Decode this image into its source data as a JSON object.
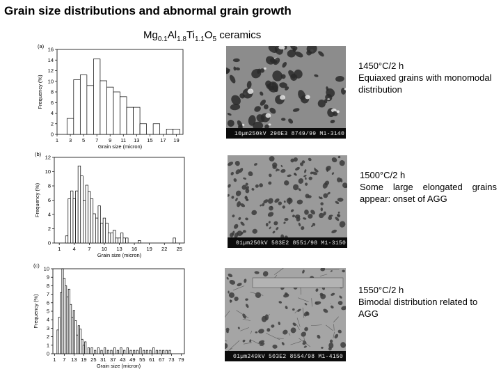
{
  "page": {
    "title": "Grain size distributions and abnormal grain growth",
    "subtitle": {
      "parts": [
        {
          "t": "Mg",
          "sub": false
        },
        {
          "t": "0.1",
          "sub": true
        },
        {
          "t": "Al",
          "sub": false
        },
        {
          "t": "1.8",
          "sub": true
        },
        {
          "t": "Ti",
          "sub": false
        },
        {
          "t": "1.1",
          "sub": true
        },
        {
          "t": "O",
          "sub": false
        },
        {
          "t": "5",
          "sub": true
        },
        {
          "t": " ceramics",
          "sub": false
        }
      ]
    }
  },
  "panels": [
    {
      "condition": "1450°C/2 h",
      "description": "Equiaxed grains with monomodal distribution",
      "micrograph": {
        "tone": "#8c8c8c",
        "grain": "#2a2a2a",
        "scale_text": "10µm250kV  290E3  8749/99  M1-3140"
      }
    },
    {
      "condition": "1500°C/2 h",
      "description": "Some large elongated grains appear: onset of AGG",
      "micrograph": {
        "tone": "#9a9a9a",
        "grain": "#3a3a3a",
        "scale_text": "01µm250kV  503E2  8551/98  M1-3150"
      }
    },
    {
      "condition": "1550°C/2 h",
      "description": "Bimodal distribution related to AGG",
      "micrograph": {
        "tone": "#a5a5a5",
        "grain": "#3c3c3c",
        "scale_text": "01µm249kV  503E2  8554/98  M1-4150"
      }
    }
  ],
  "chart_data": [
    {
      "type": "bar",
      "panel_label": "(a)",
      "xlabel": "Grain size (micron)",
      "ylabel": "Frequency (%)",
      "ylim": [
        0,
        16
      ],
      "yticks": [
        0,
        2,
        4,
        6,
        8,
        10,
        12,
        14,
        16
      ],
      "xlim": [
        1,
        20
      ],
      "xticks": [
        1,
        3,
        5,
        7,
        9,
        11,
        13,
        15,
        17,
        19
      ],
      "bin_width": 1,
      "x": [
        3,
        4,
        5,
        6,
        7,
        8,
        9,
        10,
        11,
        12,
        13,
        14,
        15,
        16,
        17,
        18,
        19
      ],
      "values": [
        3,
        10.3,
        11.2,
        9.2,
        14.2,
        10.1,
        8.9,
        8.0,
        7.1,
        5.1,
        5.1,
        2.0,
        0,
        2.0,
        0,
        1.0,
        1.0
      ]
    },
    {
      "type": "bar",
      "panel_label": "(b)",
      "xlabel": "Grain size (micron)",
      "ylabel": "Frequency (%)",
      "ylim": [
        0,
        12
      ],
      "yticks": [
        0,
        2,
        4,
        6,
        8,
        10,
        12
      ],
      "xlim": [
        0,
        26
      ],
      "xticks": [
        1,
        4,
        7,
        10,
        13,
        16,
        19,
        22,
        25
      ],
      "bin_width": 0.5,
      "x": [
        2.5,
        3,
        3.5,
        4,
        4.5,
        5,
        5.5,
        6,
        6.5,
        7,
        7.5,
        8,
        8.5,
        9,
        9.5,
        10,
        10.5,
        11,
        11.5,
        12,
        12.5,
        13,
        13.5,
        14,
        14.5,
        17,
        24
      ],
      "values": [
        1.0,
        6.2,
        7.3,
        6.2,
        7.3,
        10.8,
        9.4,
        6.0,
        8.1,
        7.2,
        6.2,
        4.1,
        3.5,
        5.2,
        2.8,
        3.5,
        2.8,
        1.4,
        1.4,
        1.8,
        0.7,
        0.7,
        1.4,
        0.7,
        0.7,
        0.35,
        0.7
      ]
    },
    {
      "type": "bar",
      "panel_label": "(c)",
      "xlabel": "Grain size (micron)",
      "ylabel": "Frequency (%)",
      "ylim": [
        0,
        10
      ],
      "yticks": [
        0,
        1,
        2,
        3,
        4,
        5,
        6,
        7,
        8,
        9,
        10
      ],
      "xlim": [
        0,
        81
      ],
      "xticks": [
        1,
        7,
        13,
        19,
        25,
        31,
        37,
        43,
        49,
        55,
        61,
        67,
        73,
        79
      ],
      "bin_width": 1,
      "x": [
        3,
        4,
        5,
        6,
        7,
        8,
        9,
        10,
        11,
        12,
        13,
        14,
        15,
        16,
        17,
        18,
        19,
        20,
        22,
        24,
        26,
        28,
        30,
        32,
        34,
        36,
        38,
        40,
        42,
        44,
        46,
        48,
        50,
        52,
        54,
        56,
        58,
        60,
        62,
        64,
        66,
        68,
        70,
        72
      ],
      "values": [
        2.8,
        4.3,
        7.2,
        10.0,
        8.9,
        8.0,
        6.7,
        7.6,
        5.8,
        4.3,
        5.1,
        3.9,
        2.2,
        3.3,
        2.9,
        1.7,
        1.0,
        1.4,
        0.7,
        0.7,
        0.4,
        0.7,
        0.4,
        0.7,
        0.4,
        0.4,
        0.7,
        0.4,
        0.7,
        0.4,
        0.7,
        0.4,
        0.4,
        0.4,
        0.7,
        0.4,
        0.4,
        0.4,
        0.7,
        0.4,
        0.4,
        0.4,
        0.4,
        0.4
      ]
    }
  ]
}
